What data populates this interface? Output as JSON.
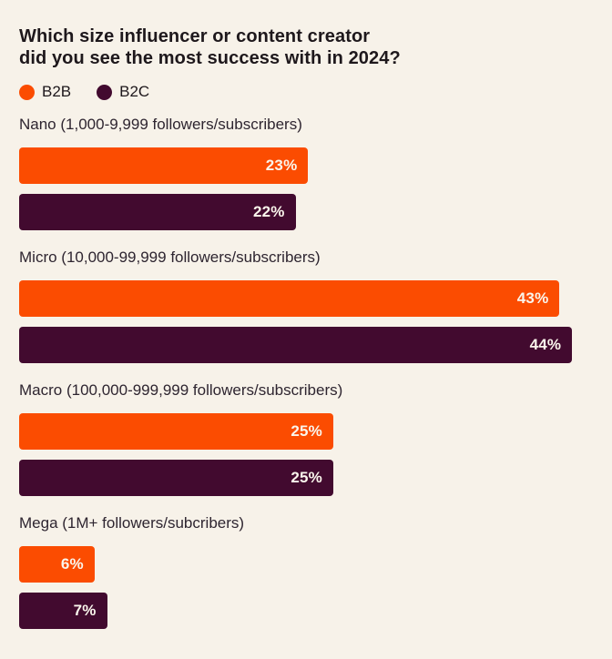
{
  "page": {
    "background_color": "#F7F2E9"
  },
  "title_lines": [
    "Which size influencer or content creator",
    "did you see the most success with in 2024?"
  ],
  "chart_data": {
    "type": "bar",
    "orientation": "horizontal",
    "title": "Which size influencer or content creator did you see the most success with in 2024?",
    "unit": "%",
    "grid": false,
    "legend_position": "top-left",
    "xlim": [
      0,
      45.7
    ],
    "categories": [
      "Nano (1,000-9,999 followers/subscribers)",
      "Micro (10,000-99,999 followers/subscribers)",
      "Macro (100,000-999,999 followers/subscribers)",
      "Mega (1M+ followers/subcribers)"
    ],
    "series": [
      {
        "name": "B2B",
        "color": "#FB4C01",
        "values": [
          23,
          43,
          25,
          6
        ]
      },
      {
        "name": "B2C",
        "color": "#420A2F",
        "values": [
          22,
          44,
          25,
          7
        ]
      }
    ],
    "value_labels": [
      "23%",
      "22%",
      "43%",
      "44%",
      "25%",
      "25%",
      "6%",
      "7%"
    ]
  }
}
